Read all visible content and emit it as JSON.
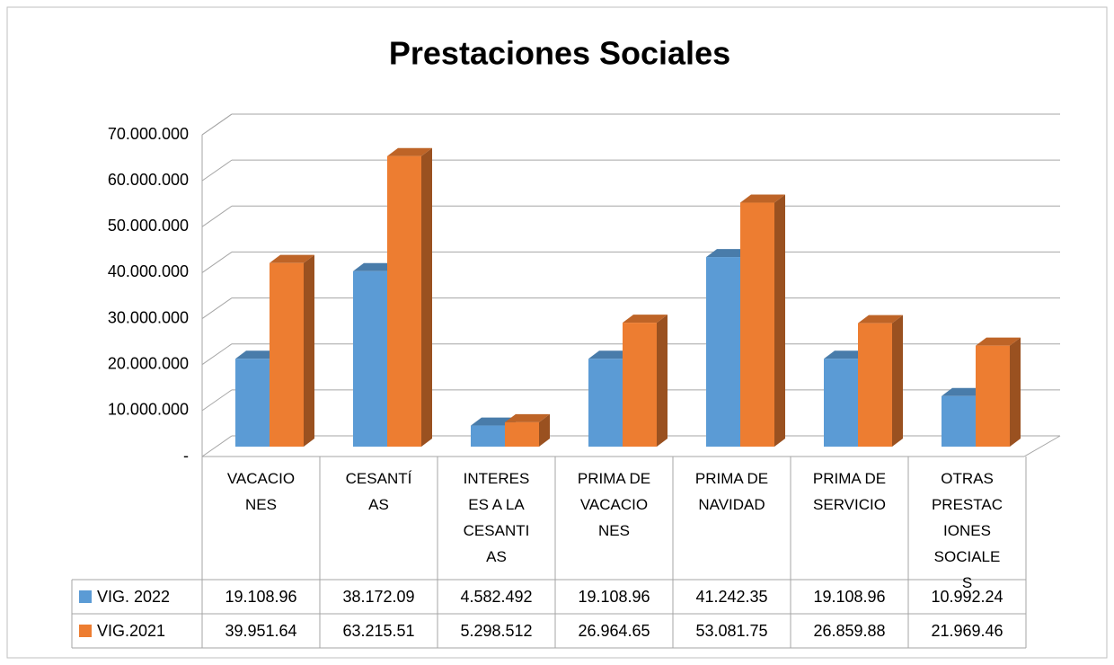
{
  "chart_data": {
    "type": "bar3d",
    "title": "Prestaciones Sociales",
    "categories": [
      "VACACIONES",
      "CESANTÍAS",
      "INTERESES A LA CESANTIAS",
      "PRIMA DE VACACIONES",
      "PRIMA DE NAVIDAD",
      "PRIMA DE SERVICIO",
      "OTRAS PRESTACIONES SOCIALES"
    ],
    "series": [
      {
        "name": "VIG. 2022",
        "color": "#5b9bd5",
        "values": [
          19108960,
          38172090,
          4582492,
          19108960,
          41242350,
          19108960,
          10992240
        ],
        "value_labels": [
          "19.108.96",
          "38.172.09",
          "4.582.492",
          "19.108.96",
          "41.242.35",
          "19.108.96",
          "10.992.24"
        ]
      },
      {
        "name": "VIG.2021",
        "color": "#ed7d31",
        "values": [
          39951640,
          63215510,
          5298512,
          26964650,
          53081750,
          26859880,
          21969460
        ],
        "value_labels": [
          "39.951.64",
          "63.215.51",
          "5.298.512",
          "26.964.65",
          "53.081.75",
          "26.859.88",
          "21.969.46"
        ]
      }
    ],
    "ylim": [
      0,
      70000000
    ],
    "yticks": [
      {
        "value": 0,
        "label": "-"
      },
      {
        "value": 10000000,
        "label": "10.000.000"
      },
      {
        "value": 20000000,
        "label": "20.000.000"
      },
      {
        "value": 30000000,
        "label": "30.000.000"
      },
      {
        "value": 40000000,
        "label": "40.000.000"
      },
      {
        "value": 50000000,
        "label": "50.000.000"
      },
      {
        "value": 60000000,
        "label": "60.000.000"
      },
      {
        "value": 70000000,
        "label": "70.000.000"
      }
    ],
    "grid": true,
    "data_table": true
  }
}
